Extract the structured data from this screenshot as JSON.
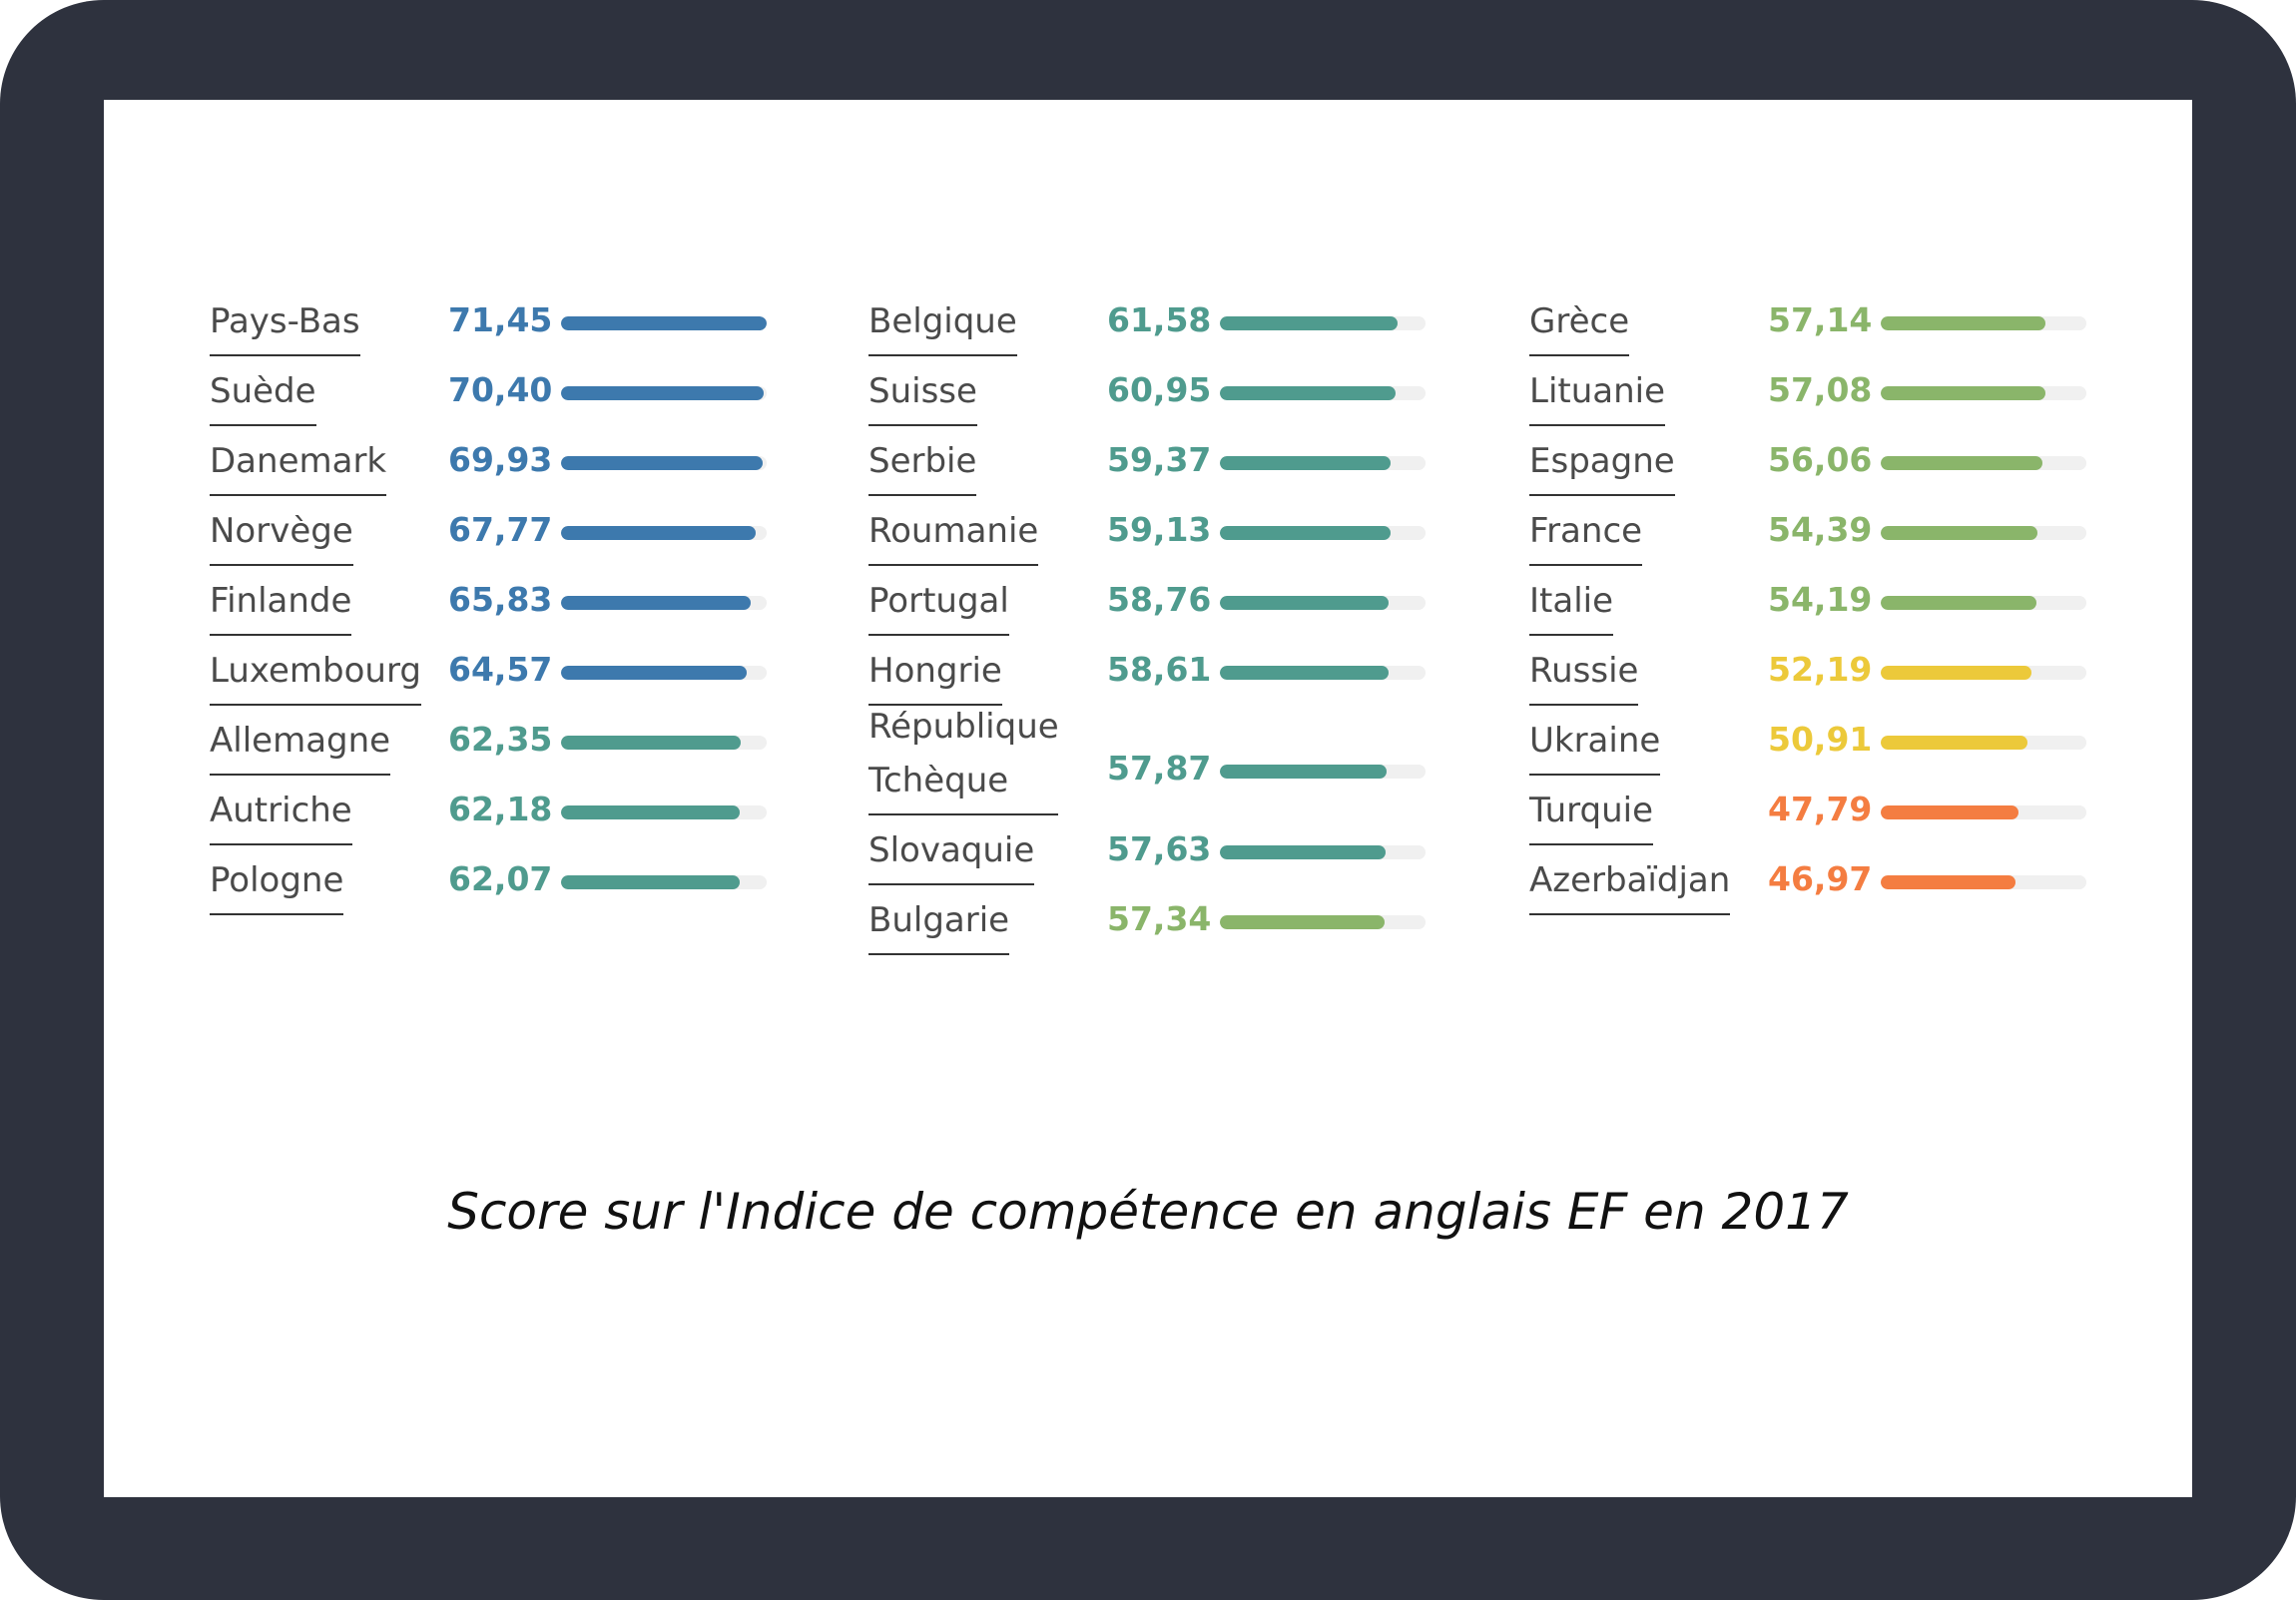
{
  "caption": "Score sur l'Indice de compétence en anglais EF en 2017",
  "colors": {
    "very_high": "#3d79ad",
    "high": "#4f9b8e",
    "moderate": "#8ab56a",
    "low": "#ecc93a",
    "very_low": "#f47d41",
    "track": "#f0f0f0"
  },
  "chart_data": {
    "type": "bar",
    "title": "Score sur l'Indice de compétence en anglais EF en 2017",
    "orientation": "horizontal",
    "xlim": [
      0,
      71.45
    ],
    "columns": [
      [
        {
          "name": "Pays-Bas",
          "label": "71,45",
          "value": 71.45,
          "level": "very_high"
        },
        {
          "name": "Suède",
          "label": "70,40",
          "value": 70.4,
          "level": "very_high"
        },
        {
          "name": "Danemark",
          "label": "69,93",
          "value": 69.93,
          "level": "very_high"
        },
        {
          "name": "Norvège",
          "label": "67,77",
          "value": 67.77,
          "level": "very_high"
        },
        {
          "name": "Finlande",
          "label": "65,83",
          "value": 65.83,
          "level": "very_high"
        },
        {
          "name": "Luxembourg",
          "label": "64,57",
          "value": 64.57,
          "level": "very_high"
        },
        {
          "name": "Allemagne",
          "label": "62,35",
          "value": 62.35,
          "level": "high"
        },
        {
          "name": "Autriche",
          "label": "62,18",
          "value": 62.18,
          "level": "high"
        },
        {
          "name": "Pologne",
          "label": "62,07",
          "value": 62.07,
          "level": "high"
        }
      ],
      [
        {
          "name": "Belgique",
          "label": "61,58",
          "value": 61.58,
          "level": "high"
        },
        {
          "name": "Suisse",
          "label": "60,95",
          "value": 60.95,
          "level": "high"
        },
        {
          "name": "Serbie",
          "label": "59,37",
          "value": 59.37,
          "level": "high"
        },
        {
          "name": "Roumanie",
          "label": "59,13",
          "value": 59.13,
          "level": "high"
        },
        {
          "name": "Portugal",
          "label": "58,76",
          "value": 58.76,
          "level": "high"
        },
        {
          "name": "Hongrie",
          "label": "58,61",
          "value": 58.61,
          "level": "high"
        },
        {
          "name": "République Tchèque",
          "label": "57,87",
          "value": 57.87,
          "level": "high"
        },
        {
          "name": "Slovaquie",
          "label": "57,63",
          "value": 57.63,
          "level": "high"
        },
        {
          "name": "Bulgarie",
          "label": "57,34",
          "value": 57.34,
          "level": "moderate"
        }
      ],
      [
        {
          "name": "Grèce",
          "label": "57,14",
          "value": 57.14,
          "level": "moderate"
        },
        {
          "name": "Lituanie",
          "label": "57,08",
          "value": 57.08,
          "level": "moderate"
        },
        {
          "name": "Espagne",
          "label": "56,06",
          "value": 56.06,
          "level": "moderate"
        },
        {
          "name": "France",
          "label": "54,39",
          "value": 54.39,
          "level": "moderate"
        },
        {
          "name": "Italie",
          "label": "54,19",
          "value": 54.19,
          "level": "moderate"
        },
        {
          "name": "Russie",
          "label": "52,19",
          "value": 52.19,
          "level": "low"
        },
        {
          "name": "Ukraine",
          "label": "50,91",
          "value": 50.91,
          "level": "low"
        },
        {
          "name": "Turquie",
          "label": "47,79",
          "value": 47.79,
          "level": "very_low"
        },
        {
          "name": "Azerbaïdjan",
          "label": "46,97",
          "value": 46.97,
          "level": "very_low"
        }
      ]
    ]
  }
}
